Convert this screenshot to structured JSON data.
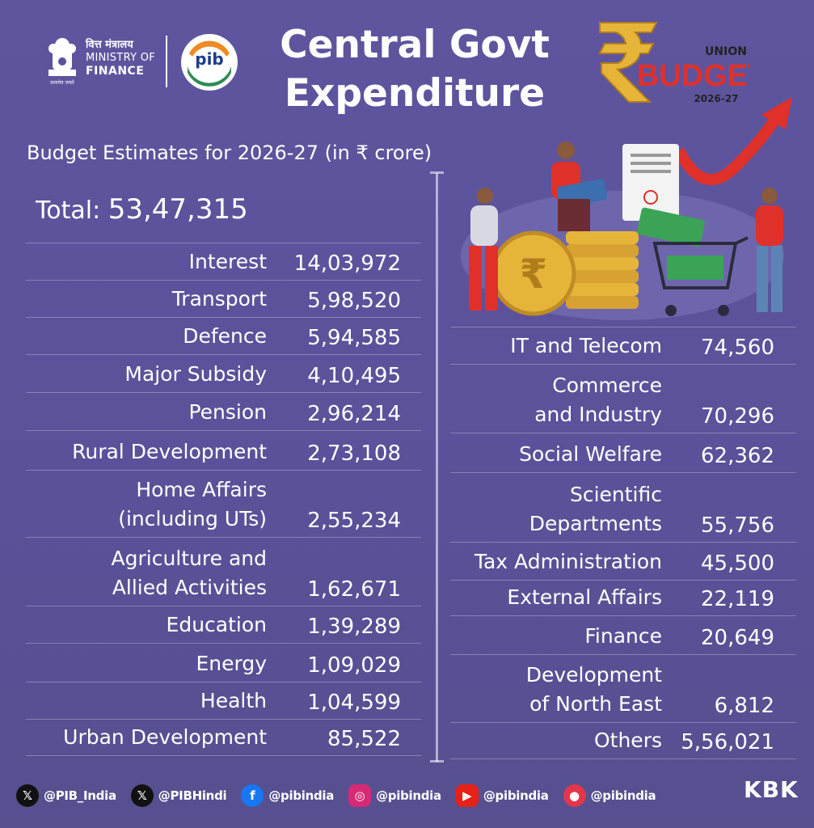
{
  "header": {
    "ministry_hindi": "वित्त मंत्रालय",
    "ministry_line1": "MINISTRY OF",
    "ministry_line2": "FINANCE",
    "emblem_motto": "सत्यमेव जयते",
    "title_line1": "Central Govt",
    "title_line2": "Expenditure",
    "budget_logo": {
      "top": "UNION",
      "main": "BUDGET",
      "year": "2026-27"
    }
  },
  "subtitle": "Budget Estimates for 2026-27 (in ₹ crore)",
  "total": {
    "label": "Total:",
    "value": "53,47,315"
  },
  "left_items": [
    {
      "label": "Interest",
      "value": "14,03,972"
    },
    {
      "label": "Transport",
      "value": "5,98,520"
    },
    {
      "label": "Defence",
      "value": "5,94,585"
    },
    {
      "label": "Major Subsidy",
      "value": "4,10,495"
    },
    {
      "label": "Pension",
      "value": "2,96,214"
    },
    {
      "label": "Rural Development",
      "value": "2,73,108"
    },
    {
      "label": "Home Affairs\n(including UTs)",
      "value": "2,55,234"
    },
    {
      "label": "Agriculture and\nAllied Activities",
      "value": "1,62,671"
    },
    {
      "label": "Education",
      "value": "1,39,289"
    },
    {
      "label": "Energy",
      "value": "1,09,029"
    },
    {
      "label": "Health",
      "value": "1,04,599"
    },
    {
      "label": "Urban Development",
      "value": "85,522"
    }
  ],
  "right_items": [
    {
      "label": "IT and Telecom",
      "value": "74,560"
    },
    {
      "label": "Commerce\nand Industry",
      "value": "70,296"
    },
    {
      "label": "Social Welfare",
      "value": "62,362"
    },
    {
      "label": "Scientific\nDepartments",
      "value": "55,756"
    },
    {
      "label": "Tax Administration",
      "value": "45,500"
    },
    {
      "label": "External Affairs",
      "value": "22,119"
    },
    {
      "label": "Finance",
      "value": "20,649"
    },
    {
      "label": "Development\nof North East",
      "value": "6,812"
    },
    {
      "label": "Others",
      "value": "5,56,021"
    }
  ],
  "footer": {
    "socials": [
      {
        "icon": "x-icon",
        "handle": "@PIB_India",
        "color": "#111111"
      },
      {
        "icon": "x-icon",
        "handle": "@PIBHindi",
        "color": "#111111"
      },
      {
        "icon": "facebook-icon",
        "handle": "@pibindia",
        "color": "#1877f2"
      },
      {
        "icon": "instagram-icon",
        "handle": "@pibindia",
        "color": "#d62976"
      },
      {
        "icon": "youtube-icon",
        "handle": "@pibindia",
        "color": "#e62117"
      },
      {
        "icon": "koo-icon",
        "handle": "@pibindia",
        "color": "#e2364b"
      }
    ],
    "signature": "KBK"
  },
  "colors": {
    "background": "#5a529a",
    "text": "#ffffff",
    "accent_red": "#e0302a",
    "gold": "#e7b43a"
  }
}
